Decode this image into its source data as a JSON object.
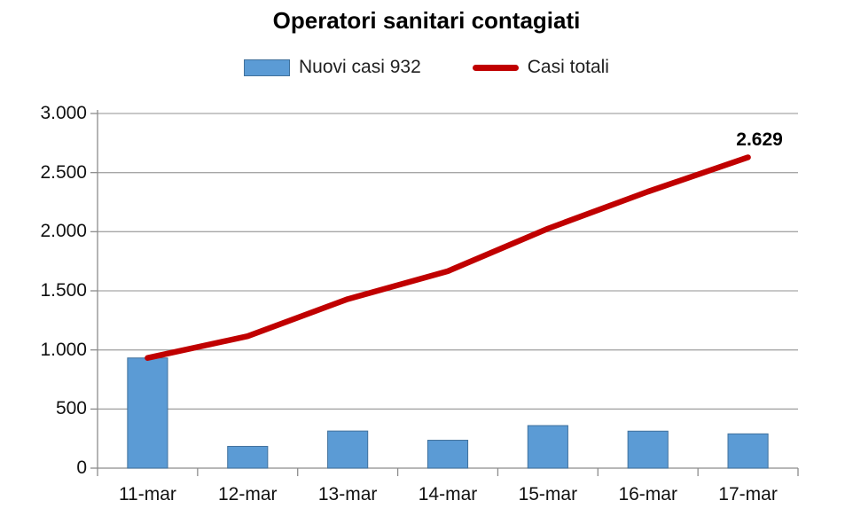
{
  "title": "Operatori sanitari contagiati",
  "legend": [
    {
      "label": "Nuovi casi 932",
      "marker": "bar-swatch",
      "color": "#5b9bd5"
    },
    {
      "label": "Casi totali",
      "marker": "line-swatch",
      "color": "#c00000"
    }
  ],
  "colors": {
    "background": "#ffffff",
    "grid": "#a6a6a6",
    "axis": "#8c8c8c",
    "tick_text": "#111111",
    "title_text": "#000000",
    "bar_fill": "#5b9bd5",
    "bar_border": "#41719c",
    "line": "#c00000"
  },
  "chart_data": {
    "type": "bar",
    "subtype": "combo bar + line",
    "title": "Operatori sanitari contagiati",
    "xlabel": "",
    "ylabel": "",
    "categories": [
      "11-mar",
      "12-mar",
      "13-mar",
      "14-mar",
      "15-mar",
      "16-mar",
      "17-mar"
    ],
    "series": [
      {
        "name": "Nuovi casi 932",
        "type": "bar",
        "color": "#5b9bd5",
        "border_color": "#41719c",
        "values": [
          932,
          184,
          314,
          236,
          360,
          313,
          290
        ]
      },
      {
        "name": "Casi totali",
        "type": "line",
        "color": "#c00000",
        "values": [
          932,
          1116,
          1430,
          1666,
          2026,
          2339,
          2629
        ]
      }
    ],
    "ylim": [
      0,
      3000
    ],
    "y_tick_step": 500,
    "y_tick_labels": [
      "0",
      "500",
      "1.000",
      "1.500",
      "2.000",
      "2.500",
      "3.000"
    ],
    "grid": "horizontal",
    "legend_position": "top",
    "annotation": {
      "text": "2.629",
      "series": "Casi totali",
      "category": "17-mar",
      "value": 2629
    }
  }
}
